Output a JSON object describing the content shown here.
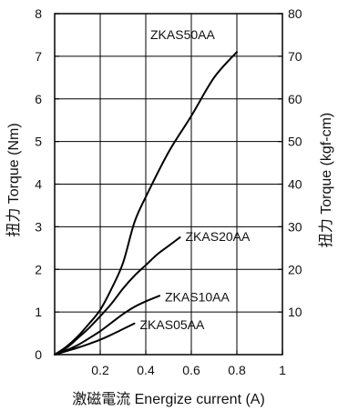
{
  "chart_data": {
    "type": "line",
    "xlabel": "激磁電流 Energize current (A)",
    "ylabel": "扭力 Torque (Nm)",
    "y2label": "扭力 Torque (kgf-cm)",
    "xlim": [
      0,
      1
    ],
    "ylim": [
      0,
      8
    ],
    "y2lim": [
      0,
      80
    ],
    "grid": true,
    "x_ticks": [
      {
        "value": 0.2,
        "label": "0.2"
      },
      {
        "value": 0.4,
        "label": "0.4"
      },
      {
        "value": 0.6,
        "label": "0.6"
      },
      {
        "value": 0.8,
        "label": "0.8"
      },
      {
        "value": 1.0,
        "label": "1"
      }
    ],
    "y_ticks": [
      {
        "value": 0,
        "label": "0"
      },
      {
        "value": 1,
        "label": "1"
      },
      {
        "value": 2,
        "label": "2"
      },
      {
        "value": 3,
        "label": "3"
      },
      {
        "value": 4,
        "label": "4"
      },
      {
        "value": 5,
        "label": "5"
      },
      {
        "value": 6,
        "label": "6"
      },
      {
        "value": 7,
        "label": "7"
      },
      {
        "value": 8,
        "label": "8"
      }
    ],
    "y2_ticks": [
      {
        "value": 10,
        "label": "10"
      },
      {
        "value": 20,
        "label": "20"
      },
      {
        "value": 30,
        "label": "30"
      },
      {
        "value": 40,
        "label": "40"
      },
      {
        "value": 50,
        "label": "50"
      },
      {
        "value": 60,
        "label": "60"
      },
      {
        "value": 70,
        "label": "70"
      },
      {
        "value": 80,
        "label": "80"
      }
    ],
    "series": [
      {
        "name": "ZKAS50AA",
        "x": [
          0,
          0.05,
          0.1,
          0.15,
          0.2,
          0.25,
          0.3,
          0.35,
          0.4,
          0.5,
          0.6,
          0.7,
          0.8
        ],
        "y": [
          0,
          0.18,
          0.42,
          0.72,
          1.05,
          1.55,
          2.15,
          3.1,
          3.7,
          4.75,
          5.6,
          6.5,
          7.1
        ]
      },
      {
        "name": "ZKAS20AA",
        "x": [
          0,
          0.05,
          0.1,
          0.15,
          0.2,
          0.25,
          0.3,
          0.35,
          0.4,
          0.45,
          0.5,
          0.55
        ],
        "y": [
          0,
          0.15,
          0.38,
          0.62,
          0.9,
          1.2,
          1.55,
          1.85,
          2.1,
          2.35,
          2.55,
          2.75
        ]
      },
      {
        "name": "ZKAS10AA",
        "x": [
          0,
          0.05,
          0.1,
          0.15,
          0.2,
          0.25,
          0.3,
          0.35,
          0.4,
          0.46
        ],
        "y": [
          0,
          0.1,
          0.22,
          0.38,
          0.55,
          0.75,
          0.95,
          1.12,
          1.25,
          1.38
        ]
      },
      {
        "name": "ZKAS05AA",
        "x": [
          0,
          0.05,
          0.1,
          0.15,
          0.2,
          0.25,
          0.3,
          0.35
        ],
        "y": [
          0,
          0.08,
          0.16,
          0.25,
          0.35,
          0.47,
          0.6,
          0.73
        ]
      }
    ],
    "colors": {
      "line": "#000000",
      "grid": "#000000",
      "background": "#ffffff"
    }
  }
}
